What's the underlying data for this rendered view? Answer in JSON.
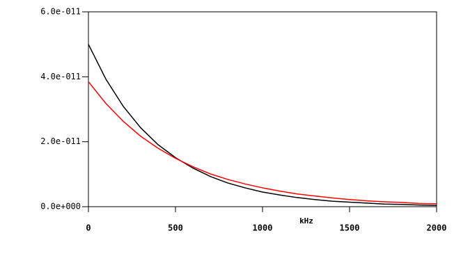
{
  "chart_data": {
    "type": "line",
    "xlabel": "kHz",
    "x": [
      0,
      100,
      200,
      300,
      400,
      500,
      600,
      700,
      800,
      900,
      1000,
      1100,
      1200,
      1300,
      1400,
      1500,
      1600,
      1700,
      1800,
      1900,
      2000
    ],
    "series": [
      {
        "color": "#000000",
        "values": [
          5e-11,
          3.93e-11,
          3.09e-11,
          2.43e-11,
          1.91e-11,
          1.51e-11,
          1.19e-11,
          9.3e-12,
          7.3e-12,
          5.8e-12,
          4.5e-12,
          3.6e-12,
          2.8e-12,
          2.2e-12,
          1.7e-12,
          1.4e-12,
          1.1e-12,
          8e-13,
          7e-13,
          5e-13,
          4e-13
        ]
      },
      {
        "color": "#ff0000",
        "values": [
          3.85e-11,
          3.18e-11,
          2.63e-11,
          2.17e-11,
          1.8e-11,
          1.49e-11,
          1.23e-11,
          1.01e-11,
          8.4e-12,
          7e-12,
          5.8e-12,
          4.8e-12,
          3.9e-12,
          3.3e-12,
          2.7e-12,
          2.2e-12,
          1.8e-12,
          1.5e-12,
          1.3e-12,
          1e-12,
          9e-13
        ]
      }
    ],
    "xlim": [
      0,
      2000
    ],
    "xticks": [
      0,
      500,
      1000,
      1500,
      2000
    ],
    "ylim": [
      0,
      6e-11
    ],
    "yticks": [
      {
        "value": 0,
        "label": "0.0e+000"
      },
      {
        "value": 2e-11,
        "label": "2.0e-011"
      },
      {
        "value": 4e-11,
        "label": "4.0e-011"
      },
      {
        "value": 6e-11,
        "label": "6.0e-011"
      }
    ],
    "grid": false
  }
}
